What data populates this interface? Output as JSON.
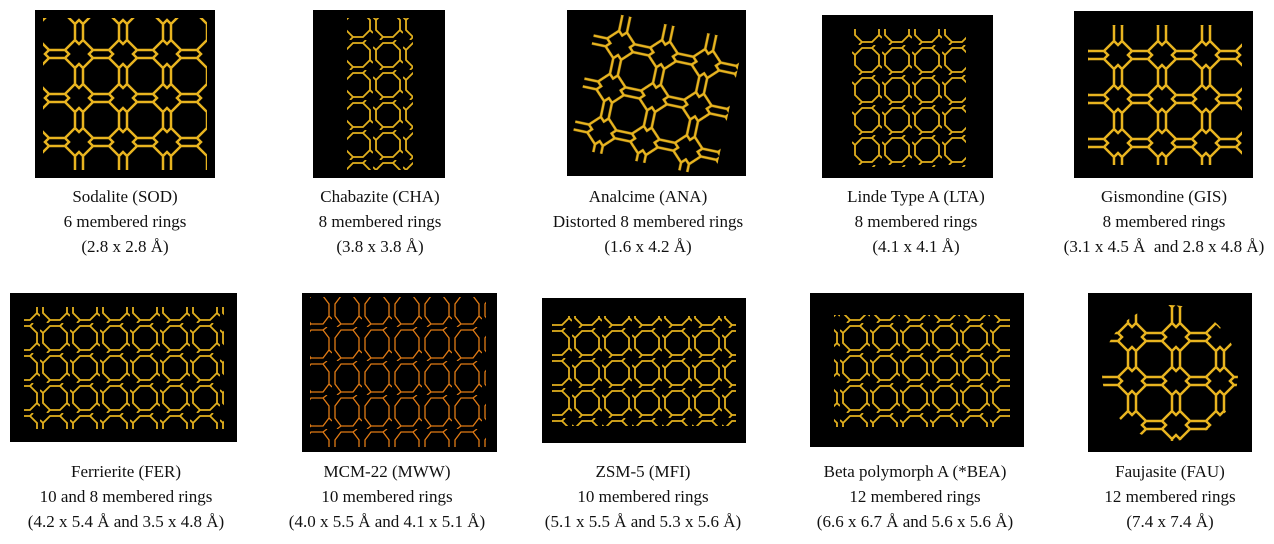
{
  "figures": [
    {
      "name": "Sodalite (SOD)",
      "rings": "6 membered rings",
      "pores": "(2.8 x 2.8 Å)"
    },
    {
      "name": "Chabazite (CHA)",
      "rings": "8 membered rings",
      "pores": "(3.8 x 3.8 Å)"
    },
    {
      "name": "Analcime (ANA)",
      "rings": "Distorted 8 membered rings",
      "pores": "(1.6 x 4.2 Å)"
    },
    {
      "name": "Linde Type A (LTA)",
      "rings": "8 membered rings",
      "pores": "(4.1 x 4.1 Å)"
    },
    {
      "name": "Gismondine (GIS)",
      "rings": "8 membered rings",
      "pores": "(3.1 x 4.5 Å  and 2.8 x 4.8 Å)"
    },
    {
      "name": "Ferrierite (FER)",
      "rings": "10 and 8 membered rings",
      "pores": "(4.2 x 5.4 Å and 3.5 x 4.8 Å)"
    },
    {
      "name": "MCM-22 (MWW)",
      "rings": "10 membered rings",
      "pores": "(4.0 x 5.5 Å and 4.1 x 5.1 Å)"
    },
    {
      "name": "ZSM-5 (MFI)",
      "rings": "10 membered rings",
      "pores": "(5.1 x 5.5 Å and 5.3 x 5.6 Å)"
    },
    {
      "name": "Beta polymorph A (*BEA)",
      "rings": "12 membered rings",
      "pores": "(6.6 x 6.7 Å and 5.6 x 5.6 Å)"
    },
    {
      "name": "Faujasite (FAU)",
      "rings": "12 membered rings",
      "pores": "(7.4 x 7.4 Å)"
    }
  ]
}
